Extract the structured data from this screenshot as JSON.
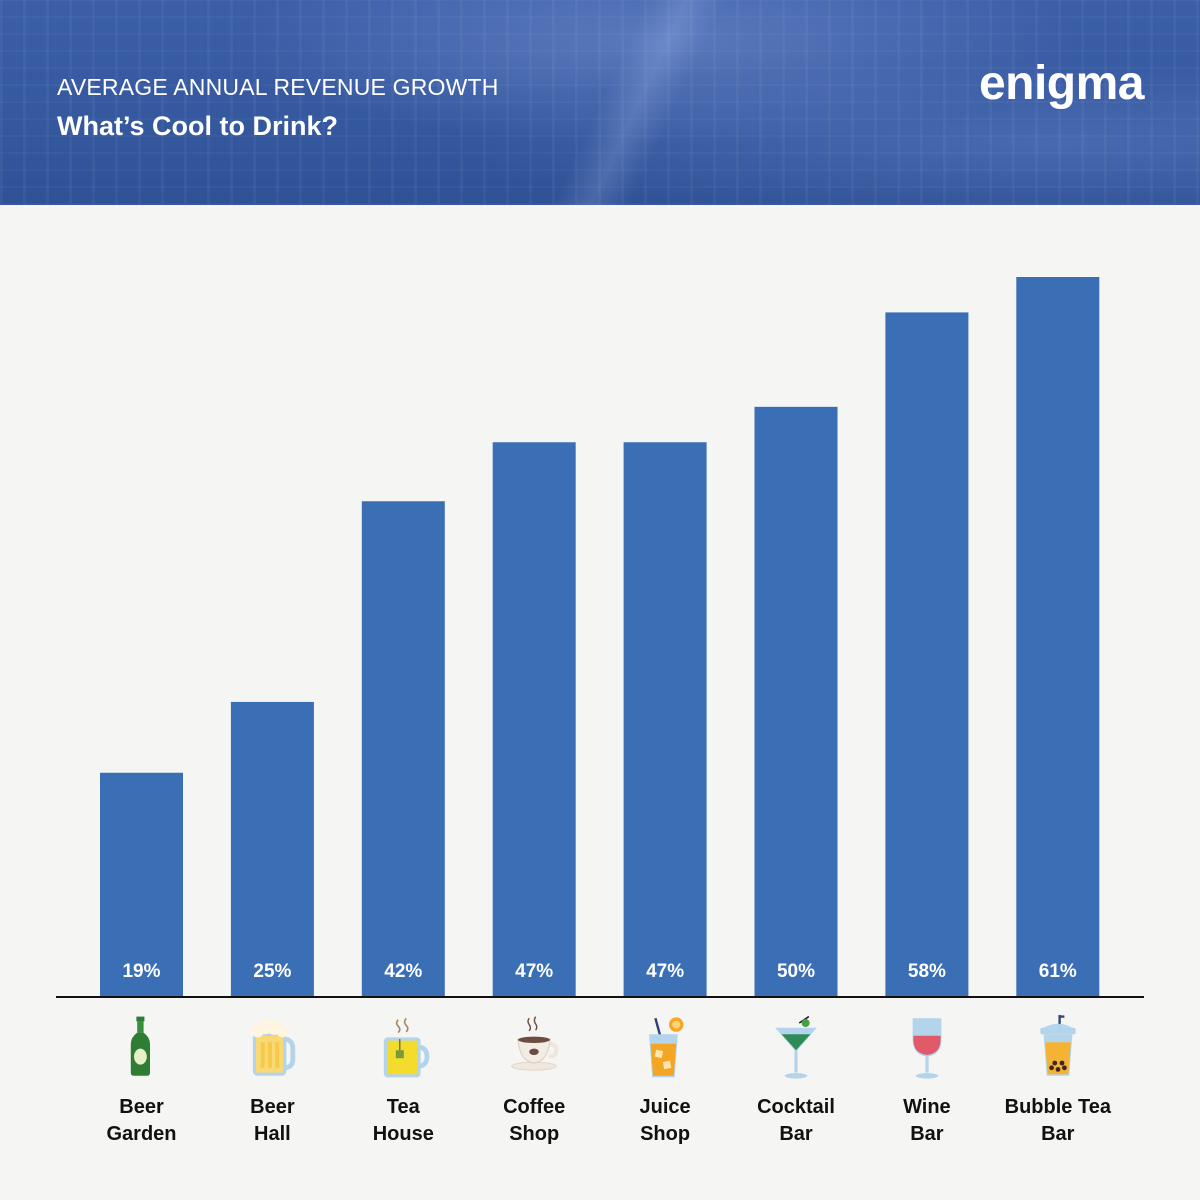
{
  "header": {
    "subtitle": "AVERAGE ANNUAL REVENUE GROWTH",
    "title": "What’s Cool to Drink?",
    "logo": "enigma"
  },
  "colors": {
    "bar": "#3a6fb6",
    "banner": "#35589f",
    "background": "#f5f5f3",
    "axis": "#111111"
  },
  "chart_data": {
    "type": "bar",
    "categories": [
      "Beer Garden",
      "Beer Hall",
      "Tea House",
      "Coffee Shop",
      "Juice Shop",
      "Cocktail Bar",
      "Wine Bar",
      "Bubble Tea Bar"
    ],
    "category_lines": [
      [
        "Beer",
        "Garden"
      ],
      [
        "Beer",
        "Hall"
      ],
      [
        "Tea",
        "House"
      ],
      [
        "Coffee",
        "Shop"
      ],
      [
        "Juice",
        "Shop"
      ],
      [
        "Cocktail",
        "Bar"
      ],
      [
        "Wine",
        "Bar"
      ],
      [
        "Bubble Tea",
        "Bar"
      ]
    ],
    "values": [
      19,
      25,
      42,
      47,
      47,
      50,
      58,
      61
    ],
    "data_labels": [
      "19%",
      "25%",
      "42%",
      "47%",
      "47%",
      "50%",
      "58%",
      "61%"
    ],
    "icons": [
      "beer-bottle-icon",
      "beer-mug-icon",
      "tea-cup-icon",
      "coffee-cup-icon",
      "juice-glass-icon",
      "cocktail-glass-icon",
      "wine-glass-icon",
      "bubble-tea-icon"
    ],
    "ylim": [
      0,
      61
    ],
    "grid": false,
    "legend": "none"
  }
}
